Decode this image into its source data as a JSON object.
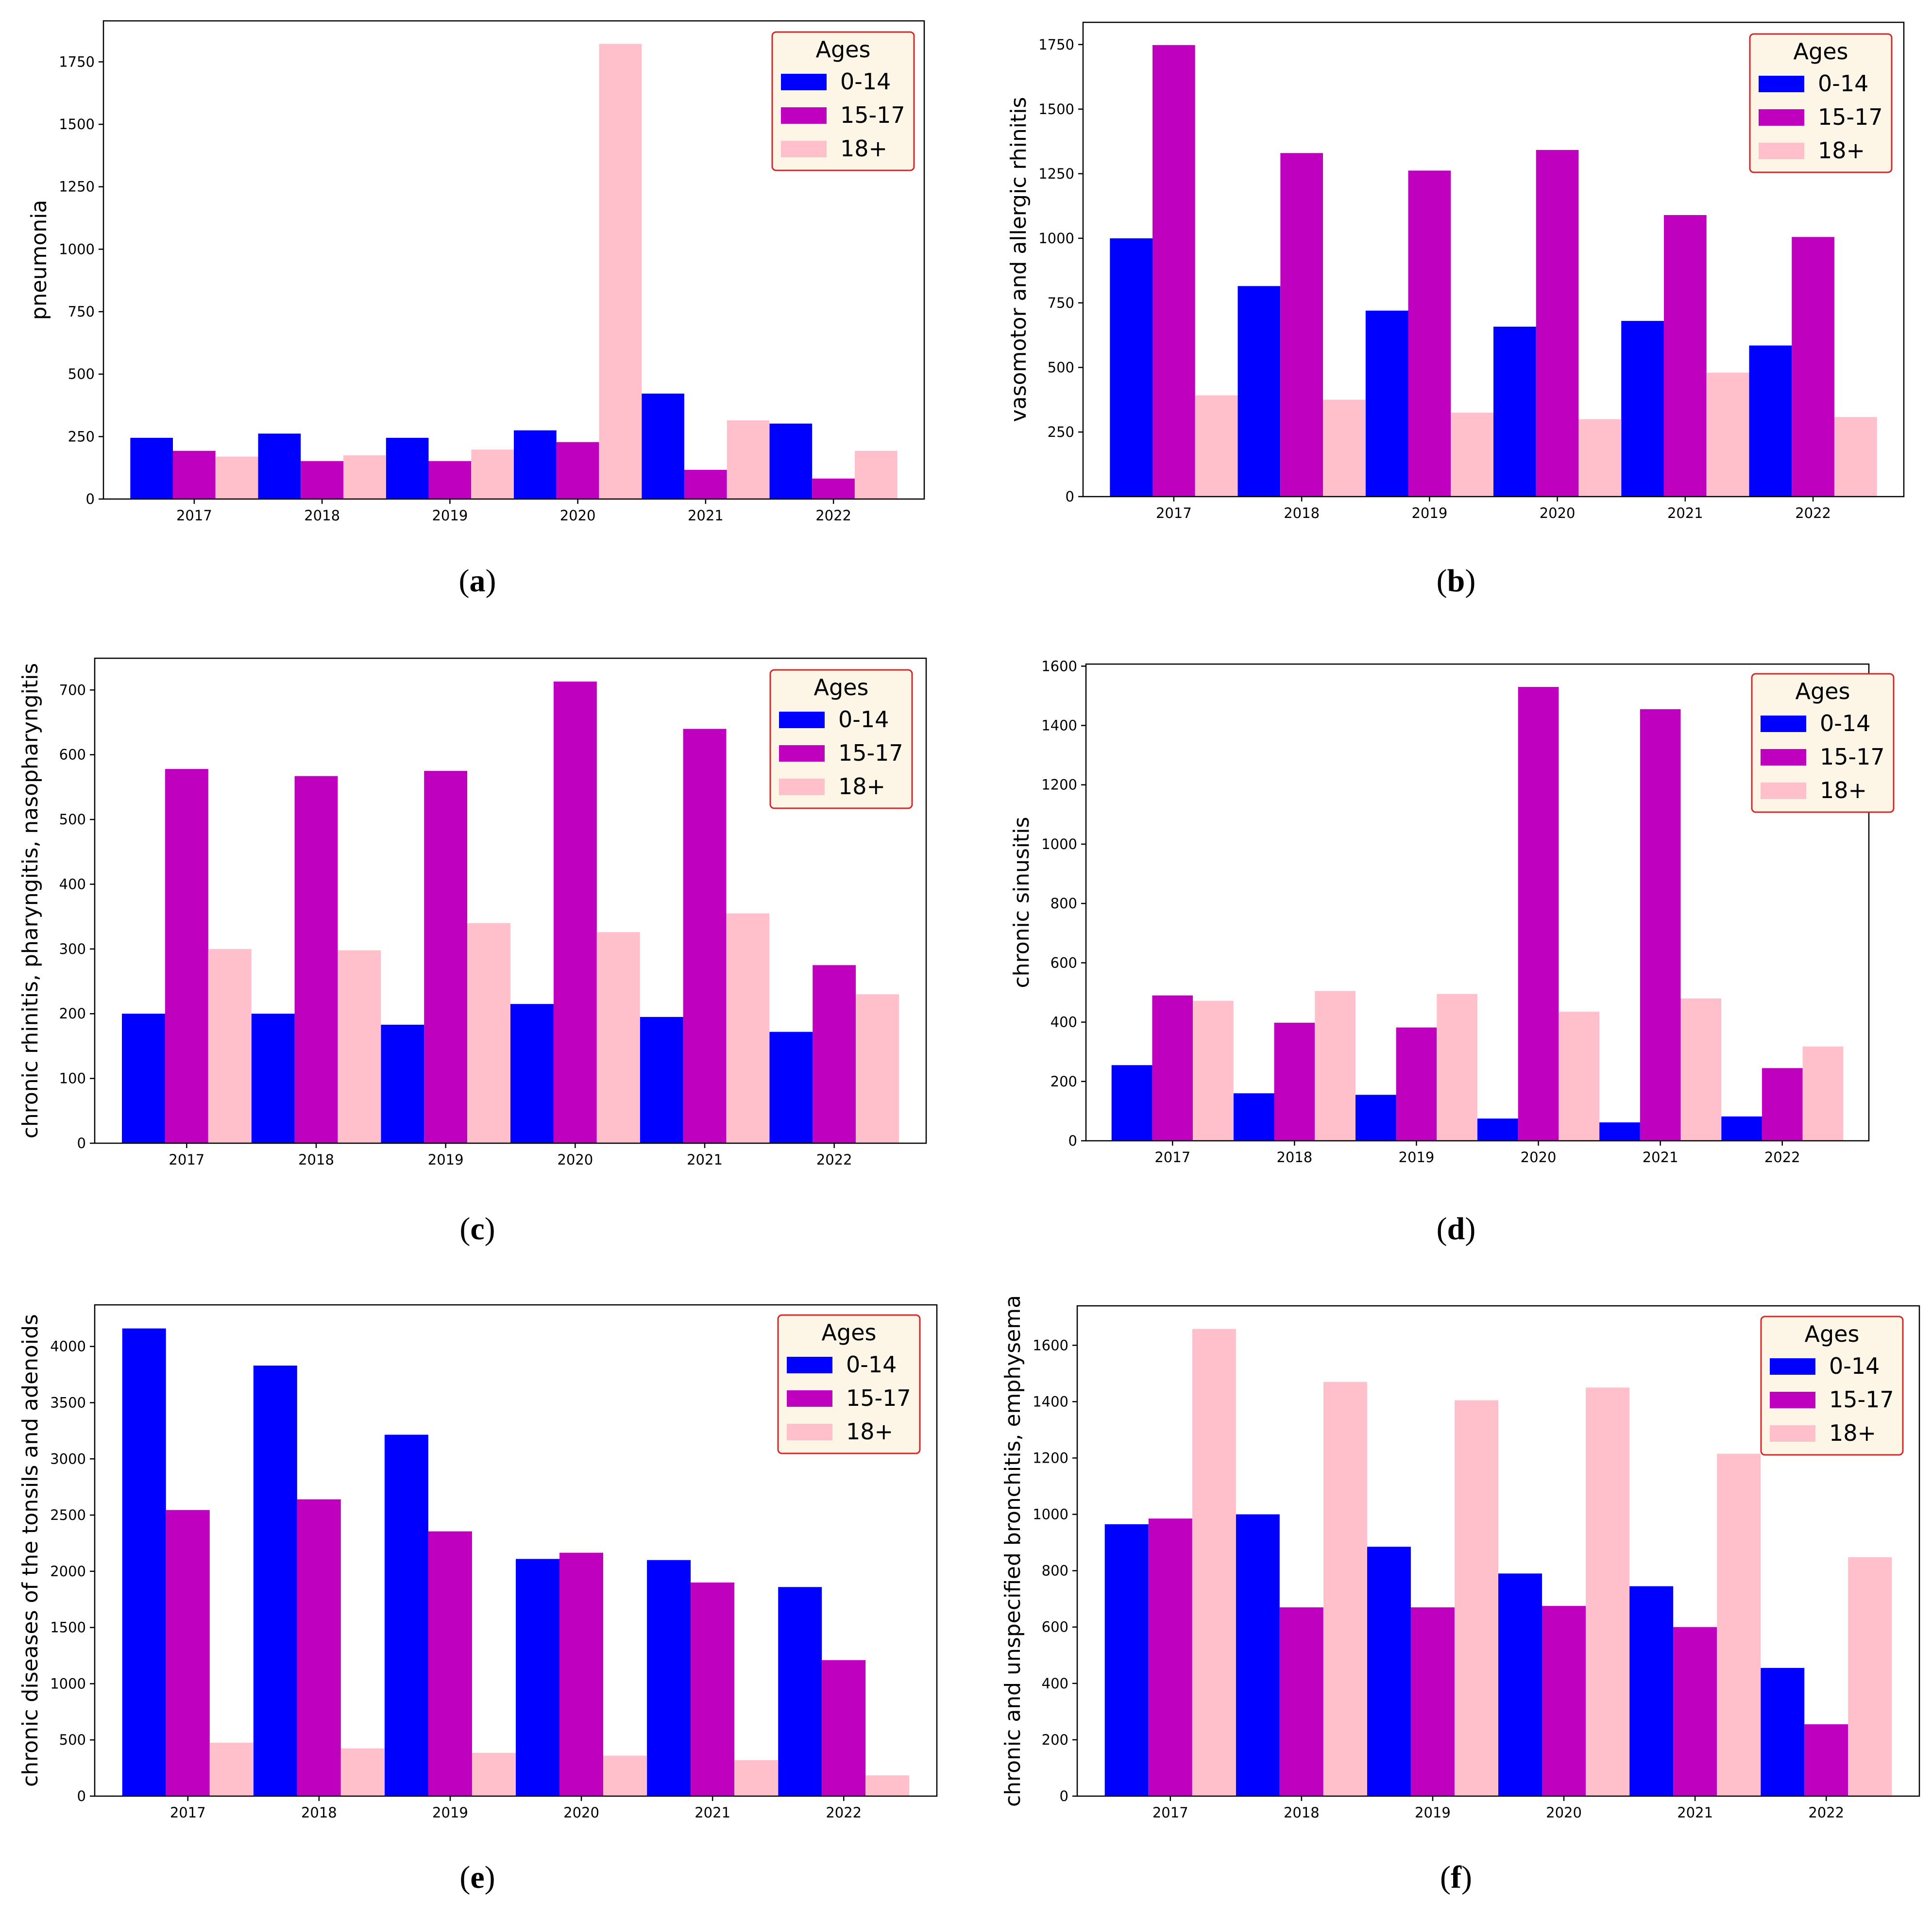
{
  "colors": {
    "s0": "#0000ff",
    "s1": "#bf00bf",
    "s2": "#ffc0cb",
    "legend_border": "#d62728",
    "legend_bg": "#fdf5e6"
  },
  "chart_data": [
    {
      "type": "bar",
      "caption_letter": "a",
      "categories": [
        "2017",
        "2018",
        "2019",
        "2020",
        "2021",
        "2022"
      ],
      "legend_title": "Ages",
      "series": [
        {
          "name": "0-14",
          "values": [
            245,
            262,
            245,
            275,
            422,
            302
          ]
        },
        {
          "name": "15-17",
          "values": [
            193,
            152,
            152,
            228,
            117,
            82
          ]
        },
        {
          "name": "18+",
          "values": [
            170,
            175,
            198,
            1822,
            315,
            193
          ]
        }
      ],
      "xlabel": "",
      "ylabel": "pneumonia",
      "ylim": [
        0,
        1914
      ],
      "yticks": [
        0,
        250,
        500,
        750,
        1000,
        1250,
        1500,
        1750
      ],
      "legend_position": "top-right"
    },
    {
      "type": "bar",
      "caption_letter": "b",
      "categories": [
        "2017",
        "2018",
        "2019",
        "2020",
        "2021",
        "2022"
      ],
      "legend_title": "Ages",
      "series": [
        {
          "name": "0-14",
          "values": [
            1000,
            815,
            720,
            658,
            680,
            585
          ]
        },
        {
          "name": "15-17",
          "values": [
            1748,
            1330,
            1262,
            1342,
            1090,
            1005
          ]
        },
        {
          "name": "18+",
          "values": [
            392,
            375,
            325,
            300,
            480,
            308
          ]
        }
      ],
      "xlabel": "",
      "ylabel": "vasomotor and allergic rhinitis",
      "ylim": [
        0,
        1836
      ],
      "yticks": [
        0,
        250,
        500,
        750,
        1000,
        1250,
        1500,
        1750
      ],
      "legend_position": "top-right"
    },
    {
      "type": "bar",
      "caption_letter": "c",
      "categories": [
        "2017",
        "2018",
        "2019",
        "2020",
        "2021",
        "2022"
      ],
      "legend_title": "Ages",
      "series": [
        {
          "name": "0-14",
          "values": [
            200,
            200,
            183,
            215,
            195,
            172
          ]
        },
        {
          "name": "15-17",
          "values": [
            578,
            567,
            575,
            713,
            640,
            275
          ]
        },
        {
          "name": "18+",
          "values": [
            300,
            298,
            340,
            326,
            355,
            230
          ]
        }
      ],
      "xlabel": "",
      "ylabel": "chronic rhinitis, pharyngitis, nasopharyngitis",
      "ylim": [
        0,
        749
      ],
      "yticks": [
        0,
        100,
        200,
        300,
        400,
        500,
        600,
        700
      ],
      "legend_position": "top-right"
    },
    {
      "type": "bar",
      "caption_letter": "d",
      "categories": [
        "2017",
        "2018",
        "2019",
        "2020",
        "2021",
        "2022"
      ],
      "legend_title": "Ages",
      "series": [
        {
          "name": "0-14",
          "values": [
            255,
            160,
            155,
            75,
            62,
            82
          ]
        },
        {
          "name": "15-17",
          "values": [
            490,
            398,
            382,
            1530,
            1455,
            245
          ]
        },
        {
          "name": "18+",
          "values": [
            472,
            505,
            495,
            435,
            480,
            318
          ]
        }
      ],
      "xlabel": "",
      "ylabel": "chronic sinusitis",
      "ylim": [
        0,
        1607
      ],
      "yticks": [
        0,
        200,
        400,
        600,
        800,
        1000,
        1200,
        1400,
        1600
      ],
      "legend_position": "top-right"
    },
    {
      "type": "bar",
      "caption_letter": "e",
      "categories": [
        "2017",
        "2018",
        "2019",
        "2020",
        "2021",
        "2022"
      ],
      "legend_title": "Ages",
      "series": [
        {
          "name": "0-14",
          "values": [
            4160,
            3830,
            3215,
            2110,
            2100,
            1860
          ]
        },
        {
          "name": "15-17",
          "values": [
            2545,
            2640,
            2355,
            2165,
            1900,
            1210
          ]
        },
        {
          "name": "18+",
          "values": [
            475,
            425,
            385,
            360,
            320,
            185
          ]
        }
      ],
      "xlabel": "",
      "ylabel": "chronic diseases of the tonsils and adenoids",
      "ylim": [
        0,
        4370
      ],
      "yticks": [
        0,
        500,
        1000,
        1500,
        2000,
        2500,
        3000,
        3500,
        4000
      ],
      "legend_position": "top-right"
    },
    {
      "type": "bar",
      "caption_letter": "f",
      "categories": [
        "2017",
        "2018",
        "2019",
        "2020",
        "2021",
        "2022"
      ],
      "legend_title": "Ages",
      "series": [
        {
          "name": "0-14",
          "values": [
            965,
            1000,
            885,
            790,
            745,
            455
          ]
        },
        {
          "name": "15-17",
          "values": [
            985,
            670,
            670,
            675,
            600,
            255
          ]
        },
        {
          "name": "18+",
          "values": [
            1658,
            1470,
            1405,
            1450,
            1215,
            848
          ]
        }
      ],
      "xlabel": "",
      "ylabel": "chronic and unspecified bronchitis, emphysema",
      "ylim": [
        0,
        1740
      ],
      "yticks": [
        0,
        200,
        400,
        600,
        800,
        1000,
        1200,
        1400,
        1600
      ],
      "legend_position": "top-right"
    }
  ]
}
